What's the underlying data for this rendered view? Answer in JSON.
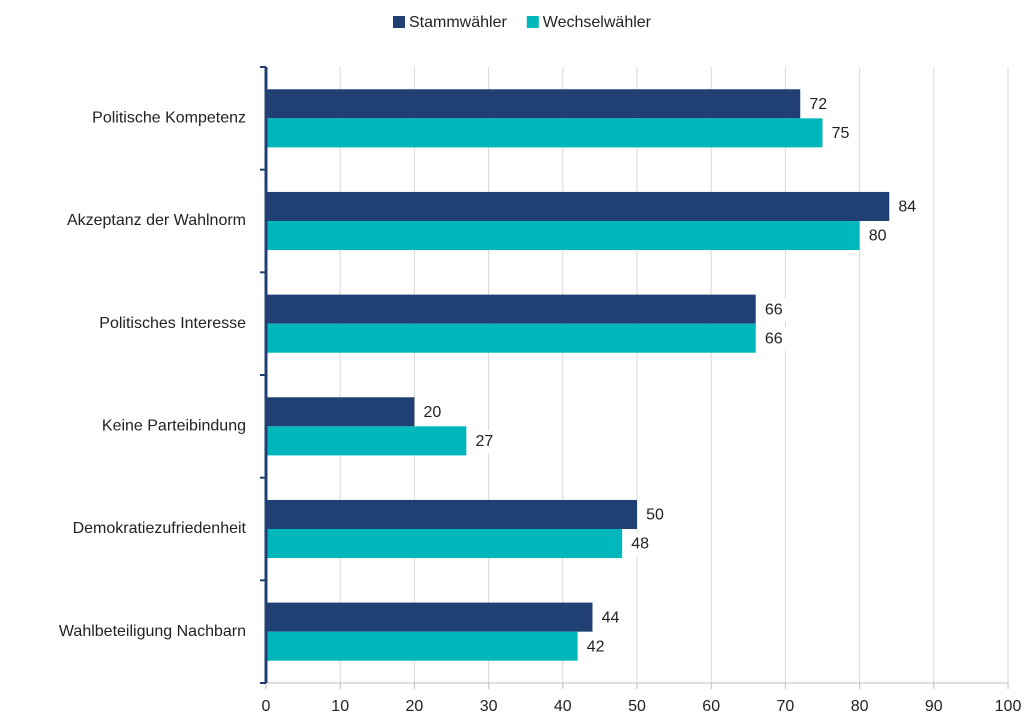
{
  "chart_data": {
    "type": "bar",
    "orientation": "horizontal",
    "categories": [
      "Politische Kompetenz",
      "Akzeptanz der Wahlnorm",
      "Politisches Interesse",
      "Keine Parteibindung",
      "Demokratiezufriedenheit",
      "Wahlbeteiligung Nachbarn"
    ],
    "series": [
      {
        "name": "Stammwähler",
        "color": "#203f73",
        "values": [
          72,
          84,
          66,
          20,
          50,
          44
        ]
      },
      {
        "name": "Wechselwähler",
        "color": "#00b8bc",
        "values": [
          75,
          80,
          66,
          27,
          48,
          42
        ]
      }
    ],
    "xlim": [
      0,
      100
    ],
    "xticks": [
      0,
      10,
      20,
      30,
      40,
      50,
      60,
      70,
      80,
      90,
      100
    ],
    "grid": true,
    "legend": "top"
  }
}
